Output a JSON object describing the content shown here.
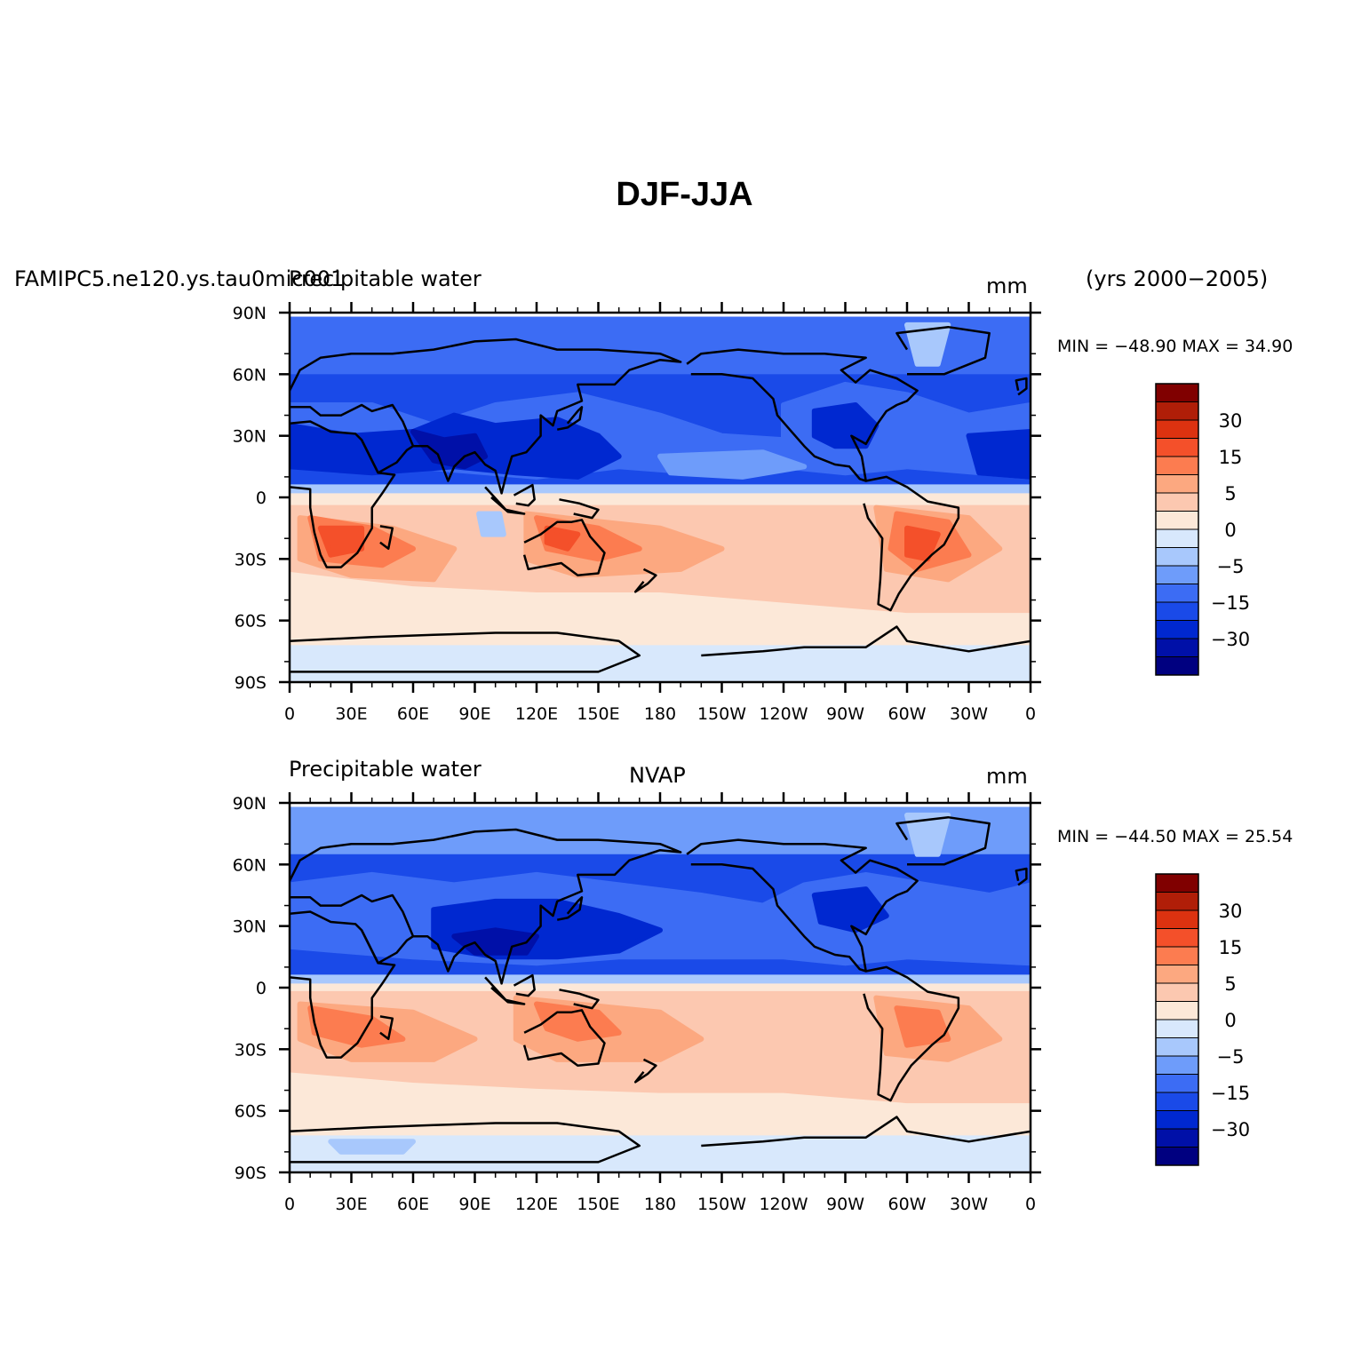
{
  "title": "DJF-JJA",
  "colors": {
    "scale": [
      "#000080",
      "#0010a8",
      "#0028d0",
      "#1a4ae8",
      "#3c6cf4",
      "#6e9cfa",
      "#a8c8fc",
      "#d8e8fc",
      "#fce8d8",
      "#fcc8b0",
      "#fca880",
      "#fc7c50",
      "#f4502a",
      "#dc3210",
      "#b01e08",
      "#800000"
    ],
    "coast": "#000000"
  },
  "panels": [
    {
      "left_title": "Precipitable water",
      "left_extra": "FAMIPC5.ne120.ys.tau0mic001",
      "center_title": "",
      "units": "mm",
      "right_title": "(yrs 2000−2005)",
      "stats": "MIN = −48.90  MAX =   34.90"
    },
    {
      "left_title": "Precipitable water",
      "left_extra": "",
      "center_title": "NVAP",
      "units": "mm",
      "right_title": "",
      "stats": "MIN = −44.50  MAX =   25.54"
    }
  ],
  "axes": {
    "y_ticks": [
      "90N",
      "60N",
      "30N",
      "0",
      "30S",
      "60S",
      "90S"
    ],
    "x_ticks": [
      "0",
      "30E",
      "60E",
      "90E",
      "120E",
      "150E",
      "180",
      "150W",
      "120W",
      "90W",
      "60W",
      "30W",
      "0"
    ]
  },
  "colorbar": {
    "labels": [
      "30",
      "15",
      "5",
      "0",
      "−5",
      "−15",
      "−30"
    ]
  }
}
